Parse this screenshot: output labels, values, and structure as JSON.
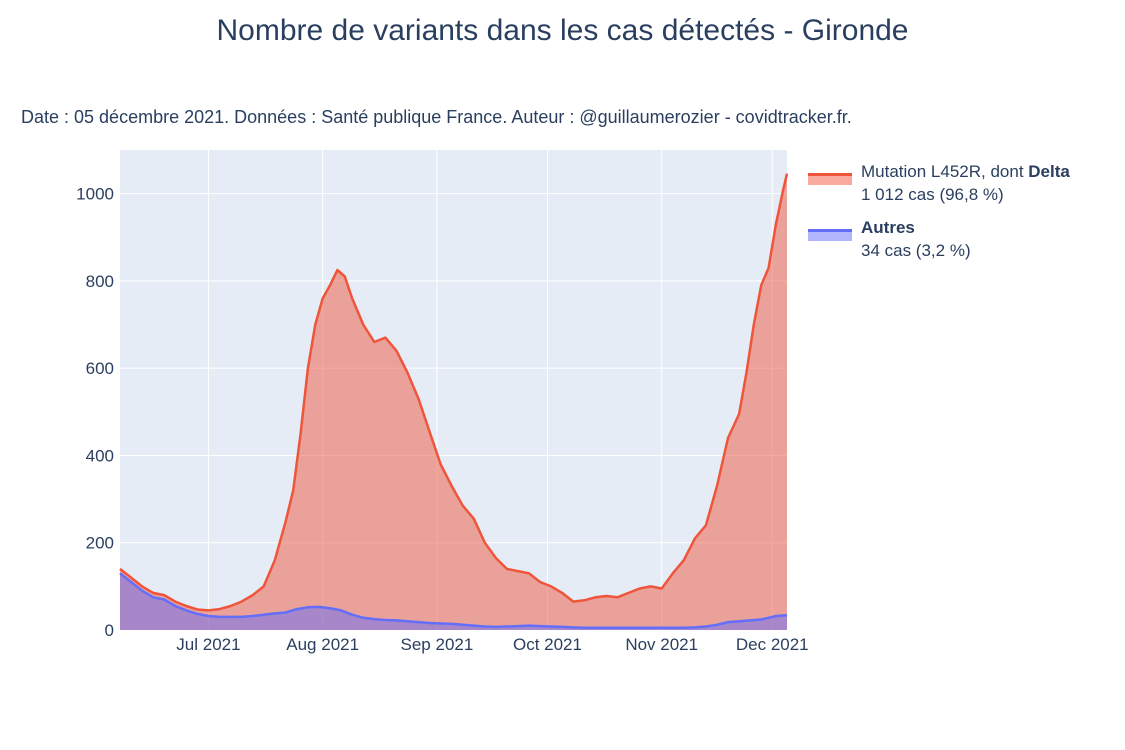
{
  "chart_data": {
    "type": "area",
    "title": "Nombre de variants dans les cas détectés - Gironde",
    "subtitle": "Date : 05 décembre 2021. Données : Santé publique France. Auteur : @guillaumerozier - covidtracker.fr.",
    "xlabel": "",
    "ylabel": "",
    "x_range": [
      "2021-06-07",
      "2021-12-05"
    ],
    "ylim": [
      0,
      1100
    ],
    "y_ticks": [
      0,
      200,
      400,
      600,
      800,
      1000
    ],
    "x_ticks": [
      {
        "date": "2021-07-01",
        "label": "Jul 2021"
      },
      {
        "date": "2021-08-01",
        "label": "Aug 2021"
      },
      {
        "date": "2021-09-01",
        "label": "Sep 2021"
      },
      {
        "date": "2021-10-01",
        "label": "Oct 2021"
      },
      {
        "date": "2021-11-01",
        "label": "Nov 2021"
      },
      {
        "date": "2021-12-01",
        "label": "Dec 2021"
      }
    ],
    "grid": true,
    "legend_position": "right",
    "series": [
      {
        "name": "Mutation L452R, dont Delta",
        "name_plain": "Mutation L452R, dont ",
        "name_bold": "Delta",
        "legend_detail": "1 012 cas (96,8 %)",
        "color": "#EF553B",
        "fill": "rgba(239,85,59,0.5)",
        "points": [
          [
            "2021-06-07",
            140
          ],
          [
            "2021-06-10",
            120
          ],
          [
            "2021-06-13",
            100
          ],
          [
            "2021-06-16",
            85
          ],
          [
            "2021-06-19",
            80
          ],
          [
            "2021-06-22",
            65
          ],
          [
            "2021-06-25",
            55
          ],
          [
            "2021-06-28",
            47
          ],
          [
            "2021-07-01",
            45
          ],
          [
            "2021-07-04",
            48
          ],
          [
            "2021-07-07",
            55
          ],
          [
            "2021-07-10",
            65
          ],
          [
            "2021-07-13",
            80
          ],
          [
            "2021-07-16",
            100
          ],
          [
            "2021-07-19",
            160
          ],
          [
            "2021-07-22",
            250
          ],
          [
            "2021-07-24",
            320
          ],
          [
            "2021-07-26",
            450
          ],
          [
            "2021-07-28",
            600
          ],
          [
            "2021-07-30",
            700
          ],
          [
            "2021-08-01",
            760
          ],
          [
            "2021-08-03",
            790
          ],
          [
            "2021-08-05",
            825
          ],
          [
            "2021-08-07",
            810
          ],
          [
            "2021-08-09",
            760
          ],
          [
            "2021-08-12",
            700
          ],
          [
            "2021-08-15",
            660
          ],
          [
            "2021-08-18",
            670
          ],
          [
            "2021-08-21",
            640
          ],
          [
            "2021-08-24",
            590
          ],
          [
            "2021-08-27",
            530
          ],
          [
            "2021-08-30",
            455
          ],
          [
            "2021-09-02",
            380
          ],
          [
            "2021-09-05",
            330
          ],
          [
            "2021-09-08",
            285
          ],
          [
            "2021-09-11",
            255
          ],
          [
            "2021-09-14",
            200
          ],
          [
            "2021-09-17",
            165
          ],
          [
            "2021-09-20",
            140
          ],
          [
            "2021-09-23",
            135
          ],
          [
            "2021-09-26",
            130
          ],
          [
            "2021-09-29",
            110
          ],
          [
            "2021-10-02",
            100
          ],
          [
            "2021-10-05",
            85
          ],
          [
            "2021-10-08",
            65
          ],
          [
            "2021-10-11",
            68
          ],
          [
            "2021-10-14",
            75
          ],
          [
            "2021-10-17",
            78
          ],
          [
            "2021-10-20",
            75
          ],
          [
            "2021-10-23",
            85
          ],
          [
            "2021-10-26",
            95
          ],
          [
            "2021-10-29",
            100
          ],
          [
            "2021-11-01",
            95
          ],
          [
            "2021-11-04",
            130
          ],
          [
            "2021-11-07",
            160
          ],
          [
            "2021-11-10",
            210
          ],
          [
            "2021-11-13",
            240
          ],
          [
            "2021-11-16",
            330
          ],
          [
            "2021-11-19",
            440
          ],
          [
            "2021-11-22",
            495
          ],
          [
            "2021-11-24",
            590
          ],
          [
            "2021-11-26",
            700
          ],
          [
            "2021-11-28",
            790
          ],
          [
            "2021-11-30",
            830
          ],
          [
            "2021-12-02",
            930
          ],
          [
            "2021-12-04",
            1010
          ],
          [
            "2021-12-05",
            1046
          ]
        ]
      },
      {
        "name": "Autres",
        "name_plain": "",
        "name_bold": "Autres",
        "legend_detail": "34 cas (3,2 %)",
        "color": "#636EFA",
        "fill": "rgba(99,110,250,0.5)",
        "points": [
          [
            "2021-06-07",
            130
          ],
          [
            "2021-06-10",
            110
          ],
          [
            "2021-06-13",
            90
          ],
          [
            "2021-06-16",
            75
          ],
          [
            "2021-06-19",
            70
          ],
          [
            "2021-06-22",
            55
          ],
          [
            "2021-06-25",
            45
          ],
          [
            "2021-06-28",
            37
          ],
          [
            "2021-07-01",
            32
          ],
          [
            "2021-07-04",
            30
          ],
          [
            "2021-07-07",
            30
          ],
          [
            "2021-07-10",
            30
          ],
          [
            "2021-07-13",
            32
          ],
          [
            "2021-07-16",
            35
          ],
          [
            "2021-07-19",
            38
          ],
          [
            "2021-07-22",
            40
          ],
          [
            "2021-07-25",
            48
          ],
          [
            "2021-07-28",
            52
          ],
          [
            "2021-07-31",
            53
          ],
          [
            "2021-08-03",
            50
          ],
          [
            "2021-08-06",
            45
          ],
          [
            "2021-08-09",
            35
          ],
          [
            "2021-08-12",
            28
          ],
          [
            "2021-08-15",
            25
          ],
          [
            "2021-08-18",
            23
          ],
          [
            "2021-08-21",
            22
          ],
          [
            "2021-08-24",
            20
          ],
          [
            "2021-08-27",
            18
          ],
          [
            "2021-08-30",
            16
          ],
          [
            "2021-09-02",
            15
          ],
          [
            "2021-09-05",
            14
          ],
          [
            "2021-09-08",
            12
          ],
          [
            "2021-09-11",
            10
          ],
          [
            "2021-09-14",
            8
          ],
          [
            "2021-09-17",
            7
          ],
          [
            "2021-09-20",
            8
          ],
          [
            "2021-09-23",
            9
          ],
          [
            "2021-09-26",
            10
          ],
          [
            "2021-09-29",
            9
          ],
          [
            "2021-10-02",
            8
          ],
          [
            "2021-10-05",
            7
          ],
          [
            "2021-10-08",
            6
          ],
          [
            "2021-10-11",
            5
          ],
          [
            "2021-10-14",
            5
          ],
          [
            "2021-10-17",
            5
          ],
          [
            "2021-10-20",
            5
          ],
          [
            "2021-10-23",
            5
          ],
          [
            "2021-10-26",
            5
          ],
          [
            "2021-10-29",
            5
          ],
          [
            "2021-11-01",
            5
          ],
          [
            "2021-11-04",
            5
          ],
          [
            "2021-11-07",
            5
          ],
          [
            "2021-11-10",
            6
          ],
          [
            "2021-11-13",
            8
          ],
          [
            "2021-11-16",
            12
          ],
          [
            "2021-11-19",
            18
          ],
          [
            "2021-11-22",
            20
          ],
          [
            "2021-11-25",
            22
          ],
          [
            "2021-11-28",
            24
          ],
          [
            "2021-11-30",
            28
          ],
          [
            "2021-12-02",
            32
          ],
          [
            "2021-12-05",
            34
          ]
        ]
      }
    ]
  }
}
